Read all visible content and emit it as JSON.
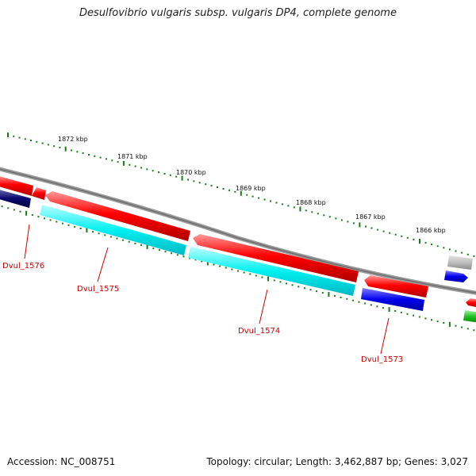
{
  "title": "Desulfovibrio vulgaris subsp. vulgaris DP4, complete genome",
  "footer": {
    "accession": "Accession: NC_008751",
    "summary": "Topology: circular; Length: 3,462,887 bp; Genes: 3,027"
  },
  "colors": {
    "backbone": "#888888",
    "forward_gene": "#ff0000",
    "reverse_gene": "#00e5e5",
    "tick": "#1a7a1a",
    "label_text": "#cc0000"
  },
  "kbp_labels": [
    "1872 kbp",
    "1871 kbp",
    "1870 kbp",
    "1869 kbp",
    "1868 kbp",
    "1867 kbp",
    "1866 kbp"
  ],
  "gene_labels": [
    "Dvul_1576",
    "Dvul_1575",
    "Dvul_1574",
    "Dvul_1573"
  ]
}
